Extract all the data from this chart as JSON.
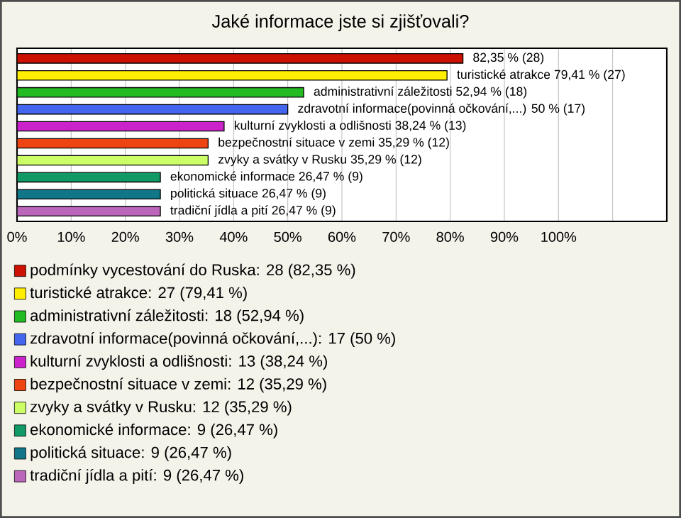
{
  "chart_data": {
    "type": "bar",
    "orientation": "horizontal",
    "title": "Jaké informace jste si zjišťovali?",
    "categories": [
      null,
      null,
      null,
      null,
      null,
      null,
      null,
      null,
      null,
      null
    ],
    "series": [
      {
        "name": "podmínky vycestování do Ruska: 28 (82,35 %)",
        "color": "#cc1100",
        "values": [
          82.35,
          null,
          null,
          null,
          null,
          null,
          null,
          null,
          null,
          null
        ],
        "value_labels": [
          "82,35 % (28)",
          null,
          null,
          null,
          null,
          null,
          null,
          null,
          null,
          null
        ]
      },
      {
        "name": "turistické atrakce: 27 (79,41 %)",
        "color": "#ffee00",
        "values": [
          null,
          79.41,
          null,
          null,
          null,
          null,
          null,
          null,
          null,
          null
        ],
        "value_labels": [
          null,
          "turistické atrakce 79,41 % (27)",
          null,
          null,
          null,
          null,
          null,
          null,
          null,
          null
        ]
      },
      {
        "name": "administrativní záležitosti: 18 (52,94 %)",
        "color": "#22bb22",
        "values": [
          null,
          null,
          52.94,
          null,
          null,
          null,
          null,
          null,
          null,
          null
        ],
        "value_labels": [
          null,
          null,
          "administrativní záležitosti 52,94 % (18)",
          null,
          null,
          null,
          null,
          null,
          null,
          null
        ]
      },
      {
        "name": "zdravotní informace(povinná očkování,...): 17 (50 %)",
        "color": "#4466ee",
        "values": [
          null,
          null,
          null,
          50,
          null,
          null,
          null,
          null,
          null,
          null
        ],
        "value_labels": [
          null,
          null,
          null,
          "zdravotní informace(povinná očkování,...) 50 % (17)",
          null,
          null,
          null,
          null,
          null,
          null
        ]
      },
      {
        "name": "kulturní zvyklosti a odlišnosti: 13 (38,24 %)",
        "color": "#cc22cc",
        "values": [
          null,
          null,
          null,
          null,
          38.24,
          null,
          null,
          null,
          null,
          null
        ],
        "value_labels": [
          null,
          null,
          null,
          null,
          "kulturní zvyklosti a odlišnosti 38,24 % (13)",
          null,
          null,
          null,
          null,
          null
        ]
      },
      {
        "name": "bezpečnostní situace v zemi: 12 (35,29 %)",
        "color": "#ee4411",
        "values": [
          null,
          null,
          null,
          null,
          null,
          35.29,
          null,
          null,
          null,
          null
        ],
        "value_labels": [
          null,
          null,
          null,
          null,
          null,
          "bezpečnostní situace v zemi 35,29 % (12)",
          null,
          null,
          null,
          null
        ]
      },
      {
        "name": "zvyky a svátky v Rusku: 12 (35,29 %)",
        "color": "#ccff66",
        "values": [
          null,
          null,
          null,
          null,
          null,
          null,
          35.29,
          null,
          null,
          null
        ],
        "value_labels": [
          null,
          null,
          null,
          null,
          null,
          null,
          "zvyky a svátky v Rusku 35,29 % (12)",
          null,
          null,
          null
        ]
      },
      {
        "name": "ekonomické informace: 9 (26,47 %)",
        "color": "#119966",
        "values": [
          null,
          null,
          null,
          null,
          null,
          null,
          null,
          26.47,
          null,
          null
        ],
        "value_labels": [
          null,
          null,
          null,
          null,
          null,
          null,
          null,
          "ekonomické informace 26,47 % (9)",
          null,
          null
        ]
      },
      {
        "name": "politická situace: 9 (26,47 %)",
        "color": "#117788",
        "values": [
          null,
          null,
          null,
          null,
          null,
          null,
          null,
          null,
          26.47,
          null
        ],
        "value_labels": [
          null,
          null,
          null,
          null,
          null,
          null,
          null,
          null,
          "politická situace 26,47 % (9)",
          null
        ]
      },
      {
        "name": "tradiční jídla a pití: 9 (26,47 %)",
        "color": "#bb66bb",
        "values": [
          null,
          null,
          null,
          null,
          null,
          null,
          null,
          null,
          null,
          26.47
        ],
        "value_labels": [
          null,
          null,
          null,
          null,
          null,
          null,
          null,
          null,
          null,
          "tradiční jídla a pití 26,47 % (9)"
        ]
      }
    ],
    "xlim": [
      0,
      120
    ],
    "xticks": [
      {
        "value": 0,
        "label": "0%"
      },
      {
        "value": 10,
        "label": "10%"
      },
      {
        "value": 20,
        "label": "20%"
      },
      {
        "value": 30,
        "label": "30%"
      },
      {
        "value": 40,
        "label": "40%"
      },
      {
        "value": 50,
        "label": "50%"
      },
      {
        "value": 60,
        "label": "60%"
      },
      {
        "value": 70,
        "label": "70%"
      },
      {
        "value": 80,
        "label": "80%"
      },
      {
        "value": 90,
        "label": "90%"
      },
      {
        "value": 100,
        "label": "100%"
      },
      {
        "value": 110,
        "label": null
      }
    ],
    "grid": "x",
    "legend": "bottom"
  }
}
